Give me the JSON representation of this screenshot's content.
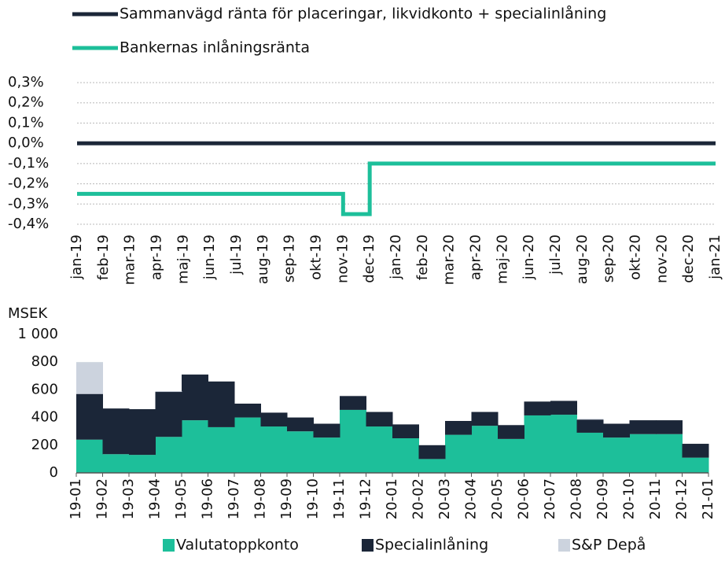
{
  "chart_data": [
    {
      "type": "line",
      "step": true,
      "categories": [
        "jan-19",
        "feb-19",
        "mar-19",
        "apr-19",
        "maj-19",
        "jun-19",
        "jul-19",
        "aug-19",
        "sep-19",
        "okt-19",
        "nov-19",
        "dec-19",
        "jan-20",
        "feb-20",
        "mar-20",
        "apr-20",
        "maj-20",
        "jun-20",
        "jul-20",
        "aug-20",
        "sep-20",
        "okt-20",
        "nov-20",
        "dec-20",
        "jan-21"
      ],
      "series": [
        {
          "name": "Sammanvägd ränta för placeringar, likvidkonto + specialinlåning",
          "color": "#1b2638",
          "values": [
            0,
            0,
            0,
            0,
            0,
            0,
            0,
            0,
            0,
            0,
            0,
            0,
            0,
            0,
            0,
            0,
            0,
            0,
            0,
            0,
            0,
            0,
            0,
            0,
            0
          ]
        },
        {
          "name": "Bankernas inlåningsränta",
          "color": "#1dbf9a",
          "values": [
            -0.25,
            -0.25,
            -0.25,
            -0.25,
            -0.25,
            -0.25,
            -0.25,
            -0.25,
            -0.25,
            -0.25,
            -0.35,
            -0.1,
            -0.1,
            -0.1,
            -0.1,
            -0.1,
            -0.1,
            -0.1,
            -0.1,
            -0.1,
            -0.1,
            -0.1,
            -0.1,
            -0.1,
            -0.1
          ]
        }
      ],
      "ylim": [
        -0.4,
        0.3
      ],
      "yticks": [
        {
          "value": 0.3,
          "label": "0,3%"
        },
        {
          "value": 0.2,
          "label": "0,2%"
        },
        {
          "value": 0.1,
          "label": "0,1%"
        },
        {
          "value": 0,
          "label": "0,0%"
        },
        {
          "value": -0.1,
          "label": "-0,1%"
        },
        {
          "value": -0.2,
          "label": "-0,2%"
        },
        {
          "value": -0.3,
          "label": "-0,3%"
        },
        {
          "value": -0.4,
          "label": "-0,4%"
        }
      ],
      "grid": true
    },
    {
      "type": "stacked_bar",
      "ylabel": "MSEK",
      "categories": [
        "19-01",
        "19-02",
        "19-03",
        "19-04",
        "19-05",
        "19-06",
        "19-07",
        "19-08",
        "19-09",
        "19-10",
        "19-11",
        "19-12",
        "20-01",
        "20-02",
        "20-03",
        "20-04",
        "20-05",
        "20-06",
        "20-07",
        "20-08",
        "20-09",
        "20-10",
        "20-11",
        "20-12",
        "21-01"
      ],
      "series": [
        {
          "name": "Valutatoppkonto",
          "color": "#1dbf9a",
          "values": [
            240,
            135,
            130,
            260,
            380,
            330,
            400,
            335,
            300,
            255,
            455,
            335,
            250,
            100,
            275,
            340,
            245,
            415,
            420,
            290,
            255,
            280,
            280,
            110,
            null
          ]
        },
        {
          "name": "Specialinlåning",
          "color": "#1b2638",
          "values": [
            330,
            330,
            330,
            325,
            330,
            330,
            100,
            100,
            100,
            100,
            100,
            105,
            100,
            100,
            100,
            100,
            100,
            100,
            100,
            95,
            100,
            100,
            100,
            100,
            null
          ]
        },
        {
          "name": "S&P Depå",
          "color": "#ccd3de",
          "values": [
            230,
            0,
            0,
            5,
            0,
            0,
            0,
            0,
            0,
            0,
            0,
            0,
            0,
            0,
            0,
            0,
            0,
            0,
            0,
            5,
            0,
            0,
            0,
            0,
            null
          ]
        }
      ],
      "ylim": [
        0,
        1000
      ],
      "yticks": [
        0,
        200,
        400,
        600,
        800,
        {
          "value": 1000,
          "label": "1 000"
        }
      ]
    }
  ]
}
